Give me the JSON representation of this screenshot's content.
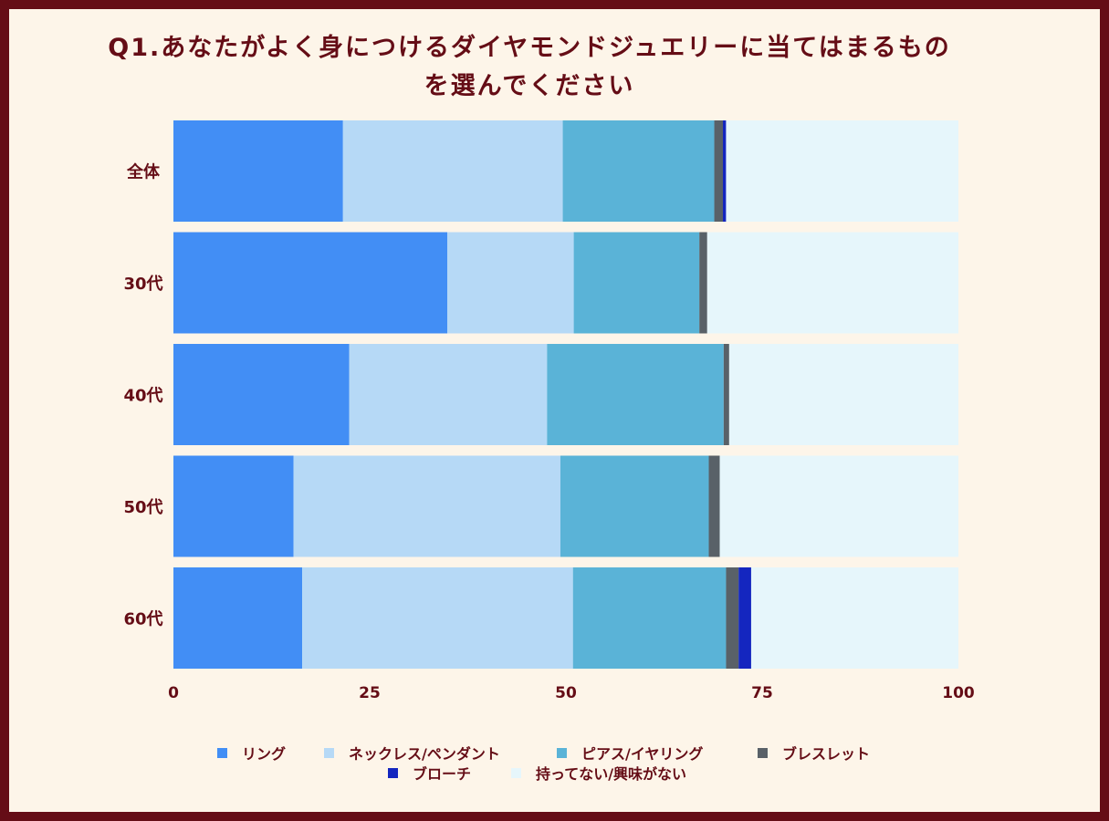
{
  "chart_data": {
    "type": "bar",
    "orientation": "horizontal",
    "stacked": true,
    "title_line1": "Q1.あなたがよく身につけるダイヤモンドジュエリーに当てはまるもの",
    "title_line2": "を選んでください",
    "categories": [
      "全体",
      "30代",
      "40代",
      "50代",
      "60代"
    ],
    "xlim": [
      0,
      100
    ],
    "xticks": [
      "0",
      "25",
      "50",
      "75",
      "100"
    ],
    "legend_position": "bottom",
    "series": [
      {
        "name": "リング",
        "color": "#428ef5",
        "values": [
          21.6,
          34.9,
          22.4,
          15.3,
          16.4
        ]
      },
      {
        "name": "ネックレス/ペンダント",
        "color": "#b6d9f6",
        "values": [
          28.0,
          16.1,
          25.2,
          34.0,
          34.5
        ]
      },
      {
        "name": "ピアス/イヤリング",
        "color": "#5ab3d7",
        "values": [
          19.3,
          16.0,
          22.5,
          18.9,
          19.5
        ]
      },
      {
        "name": "ブレスレット",
        "color": "#596168",
        "values": [
          1.1,
          1.0,
          0.7,
          1.4,
          1.6
        ]
      },
      {
        "name": "ブローチ",
        "color": "#1426bf",
        "values": [
          0.4,
          0.0,
          0.0,
          0.0,
          1.6
        ]
      },
      {
        "name": "持ってない/興味がない",
        "color": "#e6f6fb",
        "values": [
          29.6,
          32.0,
          29.2,
          30.4,
          26.4
        ]
      }
    ]
  }
}
